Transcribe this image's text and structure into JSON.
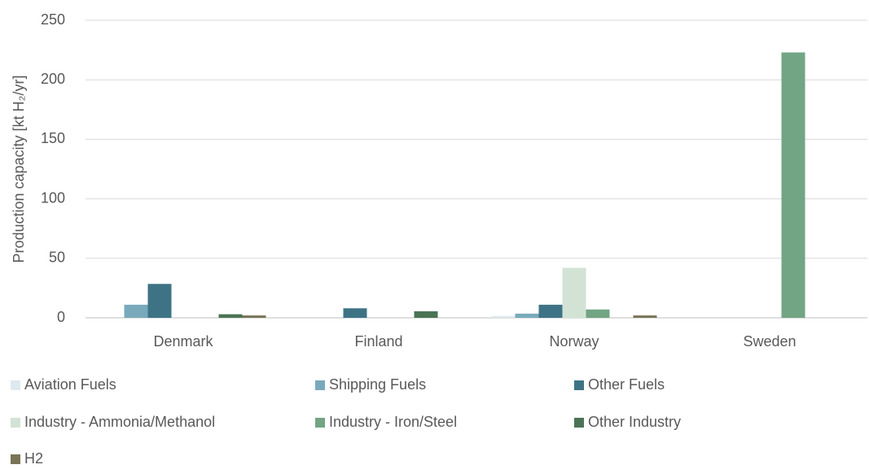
{
  "chart_data": {
    "type": "bar",
    "ylabel": "Production capacity [kt H₂/yr]",
    "categories": [
      "Denmark",
      "Finland",
      "Norway",
      "Sweden"
    ],
    "series": [
      {
        "name": "Aviation Fuels",
        "color": "#dde9ee",
        "values": [
          0,
          0,
          1.5,
          0
        ]
      },
      {
        "name": "Shipping Fuels",
        "color": "#78aabb",
        "values": [
          11,
          0,
          3.5,
          0
        ]
      },
      {
        "name": "Other Fuels",
        "color": "#3e7385",
        "values": [
          28.5,
          8,
          11,
          0
        ]
      },
      {
        "name": "Industry - Ammonia/Methanol",
        "color": "#d2e3d6",
        "values": [
          0,
          0,
          42,
          0
        ]
      },
      {
        "name": "Industry - Iron/Steel",
        "color": "#72a583",
        "values": [
          0,
          0,
          7,
          223
        ]
      },
      {
        "name": "Other Industry",
        "color": "#4a7455",
        "values": [
          3,
          5.5,
          0,
          0
        ]
      },
      {
        "name": "H2",
        "color": "#7a7558",
        "values": [
          2,
          0,
          2,
          0
        ]
      }
    ],
    "ylim": [
      0,
      250
    ],
    "yticks": [
      0,
      50,
      100,
      150,
      200,
      250
    ],
    "grid": true
  }
}
